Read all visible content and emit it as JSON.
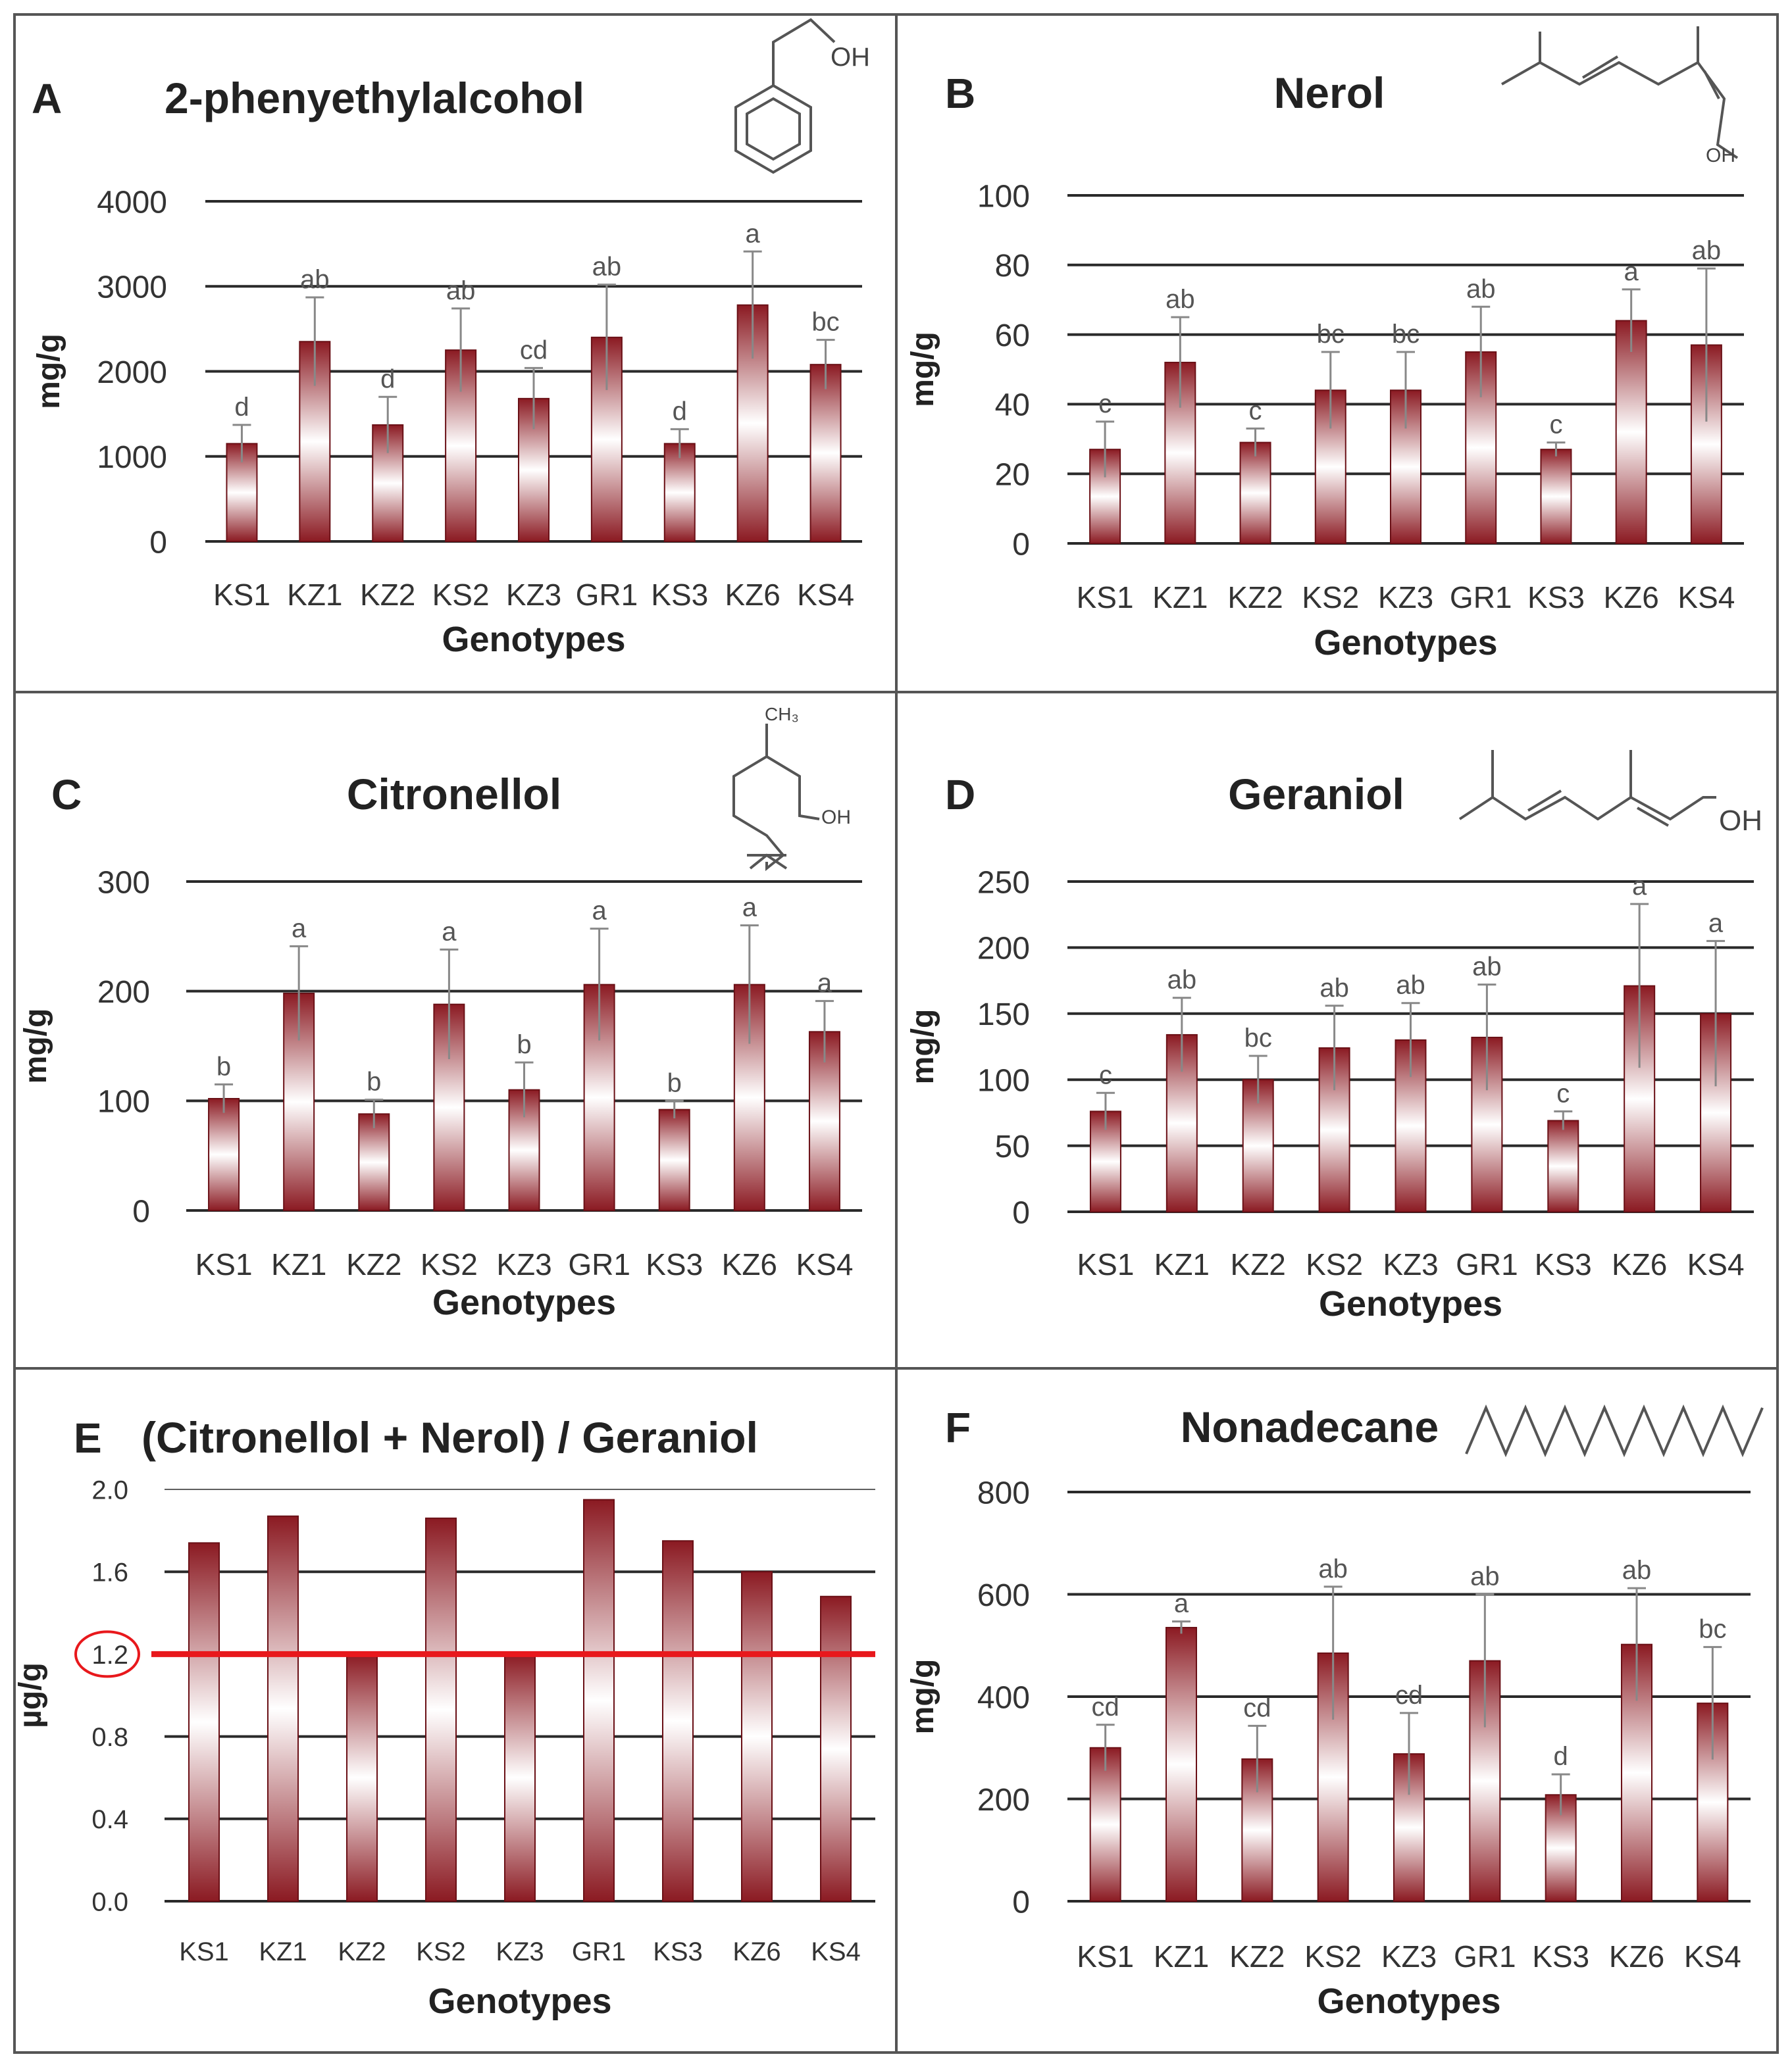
{
  "colors": {
    "bar_dark": "#8b1a22",
    "bar_light": "#ffffff",
    "axis_text": "#333333",
    "grid": "#2a2a2a",
    "frame": "#555555",
    "letters": "#555555",
    "error": "#888888",
    "threshold": "#e8181c"
  },
  "panel_labels": {
    "A": "A",
    "B": "B",
    "C": "C",
    "D": "D",
    "E": "E",
    "F": "F"
  },
  "structure_labels": {
    "oh": "OH",
    "ch3": "CH₃"
  },
  "chart_data": [
    {
      "id": "A",
      "type": "bar",
      "title": "2-phenyethylalcohol",
      "xlabel": "Genotypes",
      "ylabel": "mg/g",
      "ylim": [
        0,
        4000
      ],
      "yticks": [
        "0",
        "1000",
        "2000",
        "3000",
        "4000"
      ],
      "categories": [
        "KS1",
        "KZ1",
        "KZ2",
        "KS2",
        "KZ3",
        "GR1",
        "KS3",
        "KZ6",
        "KS4"
      ],
      "values": [
        1150,
        2350,
        1370,
        2250,
        1680,
        2400,
        1150,
        2780,
        2080
      ],
      "errors": [
        220,
        520,
        330,
        490,
        360,
        620,
        170,
        630,
        290
      ],
      "letters": [
        "d",
        "ab",
        "d",
        "ab",
        "cd",
        "ab",
        "d",
        "a",
        "bc"
      ]
    },
    {
      "id": "B",
      "type": "bar",
      "title": "Nerol",
      "xlabel": "Genotypes",
      "ylabel": "mg/g",
      "ylim": [
        0,
        100
      ],
      "yticks": [
        "0",
        "20",
        "40",
        "60",
        "80",
        "100"
      ],
      "categories": [
        "KS1",
        "KZ1",
        "KZ2",
        "KS2",
        "KZ3",
        "GR1",
        "KS3",
        "KZ6",
        "KS4"
      ],
      "values": [
        27,
        52,
        29,
        44,
        44,
        55,
        27,
        64,
        57
      ],
      "errors": [
        8,
        13,
        4,
        11,
        11,
        13,
        2,
        9,
        22
      ],
      "letters": [
        "c",
        "ab",
        "c",
        "bc",
        "bc",
        "ab",
        "c",
        "a",
        "ab"
      ]
    },
    {
      "id": "C",
      "type": "bar",
      "title": "Citronellol",
      "xlabel": "Genotypes",
      "ylabel": "mg/g",
      "ylim": [
        0,
        300
      ],
      "yticks": [
        "0",
        "100",
        "200",
        "300"
      ],
      "categories": [
        "KS1",
        "KZ1",
        "KZ2",
        "KS2",
        "KZ3",
        "GR1",
        "KS3",
        "KZ6",
        "KS4"
      ],
      "values": [
        102,
        198,
        88,
        188,
        110,
        206,
        92,
        206,
        163
      ],
      "errors": [
        13,
        43,
        13,
        50,
        25,
        51,
        8,
        54,
        28
      ],
      "letters": [
        "b",
        "a",
        "b",
        "a",
        "b",
        "a",
        "b",
        "a",
        "a"
      ]
    },
    {
      "id": "D",
      "type": "bar",
      "title": "Geraniol",
      "xlabel": "Genotypes",
      "ylabel": "mg/g",
      "ylim": [
        0,
        250
      ],
      "yticks": [
        "0",
        "50",
        "100",
        "150",
        "200",
        "250"
      ],
      "categories": [
        "KS1",
        "KZ1",
        "KZ2",
        "KS2",
        "KZ3",
        "GR1",
        "KS3",
        "KZ6",
        "KS4"
      ],
      "values": [
        76,
        134,
        100,
        124,
        130,
        132,
        69,
        171,
        150
      ],
      "errors": [
        14,
        28,
        18,
        32,
        28,
        40,
        7,
        62,
        55
      ],
      "letters": [
        "c",
        "ab",
        "bc",
        "ab",
        "ab",
        "ab",
        "c",
        "a",
        "a"
      ]
    },
    {
      "id": "E",
      "type": "bar",
      "title": "(Citronellol + Nerol) / Geraniol",
      "xlabel": "Genotypes",
      "ylabel": "µg/g",
      "ylim": [
        0,
        2.0
      ],
      "yticks": [
        "0.0",
        "0.4",
        "0.8",
        "1.2",
        "1.6",
        "2.0"
      ],
      "highlighted_tick": "1.2",
      "threshold": 1.2,
      "categories": [
        "KS1",
        "KZ1",
        "KZ2",
        "KS2",
        "KZ3",
        "GR1",
        "KS3",
        "KZ6",
        "KS4"
      ],
      "values": [
        1.74,
        1.87,
        1.2,
        1.86,
        1.2,
        1.95,
        1.75,
        1.6,
        1.48
      ]
    },
    {
      "id": "F",
      "type": "bar",
      "title": "Nonadecane",
      "xlabel": "Genotypes",
      "ylabel": "mg/g",
      "ylim": [
        0,
        800
      ],
      "yticks": [
        "0",
        "200",
        "400",
        "600",
        "800"
      ],
      "categories": [
        "KS1",
        "KZ1",
        "KZ2",
        "KS2",
        "KZ3",
        "GR1",
        "KS3",
        "KZ6",
        "KS4"
      ],
      "values": [
        300,
        535,
        278,
        485,
        288,
        470,
        208,
        502,
        387
      ],
      "errors": [
        45,
        12,
        65,
        130,
        80,
        130,
        40,
        110,
        110
      ],
      "letters": [
        "cd",
        "a",
        "cd",
        "ab",
        "cd",
        "ab",
        "d",
        "ab",
        "bc"
      ]
    }
  ]
}
